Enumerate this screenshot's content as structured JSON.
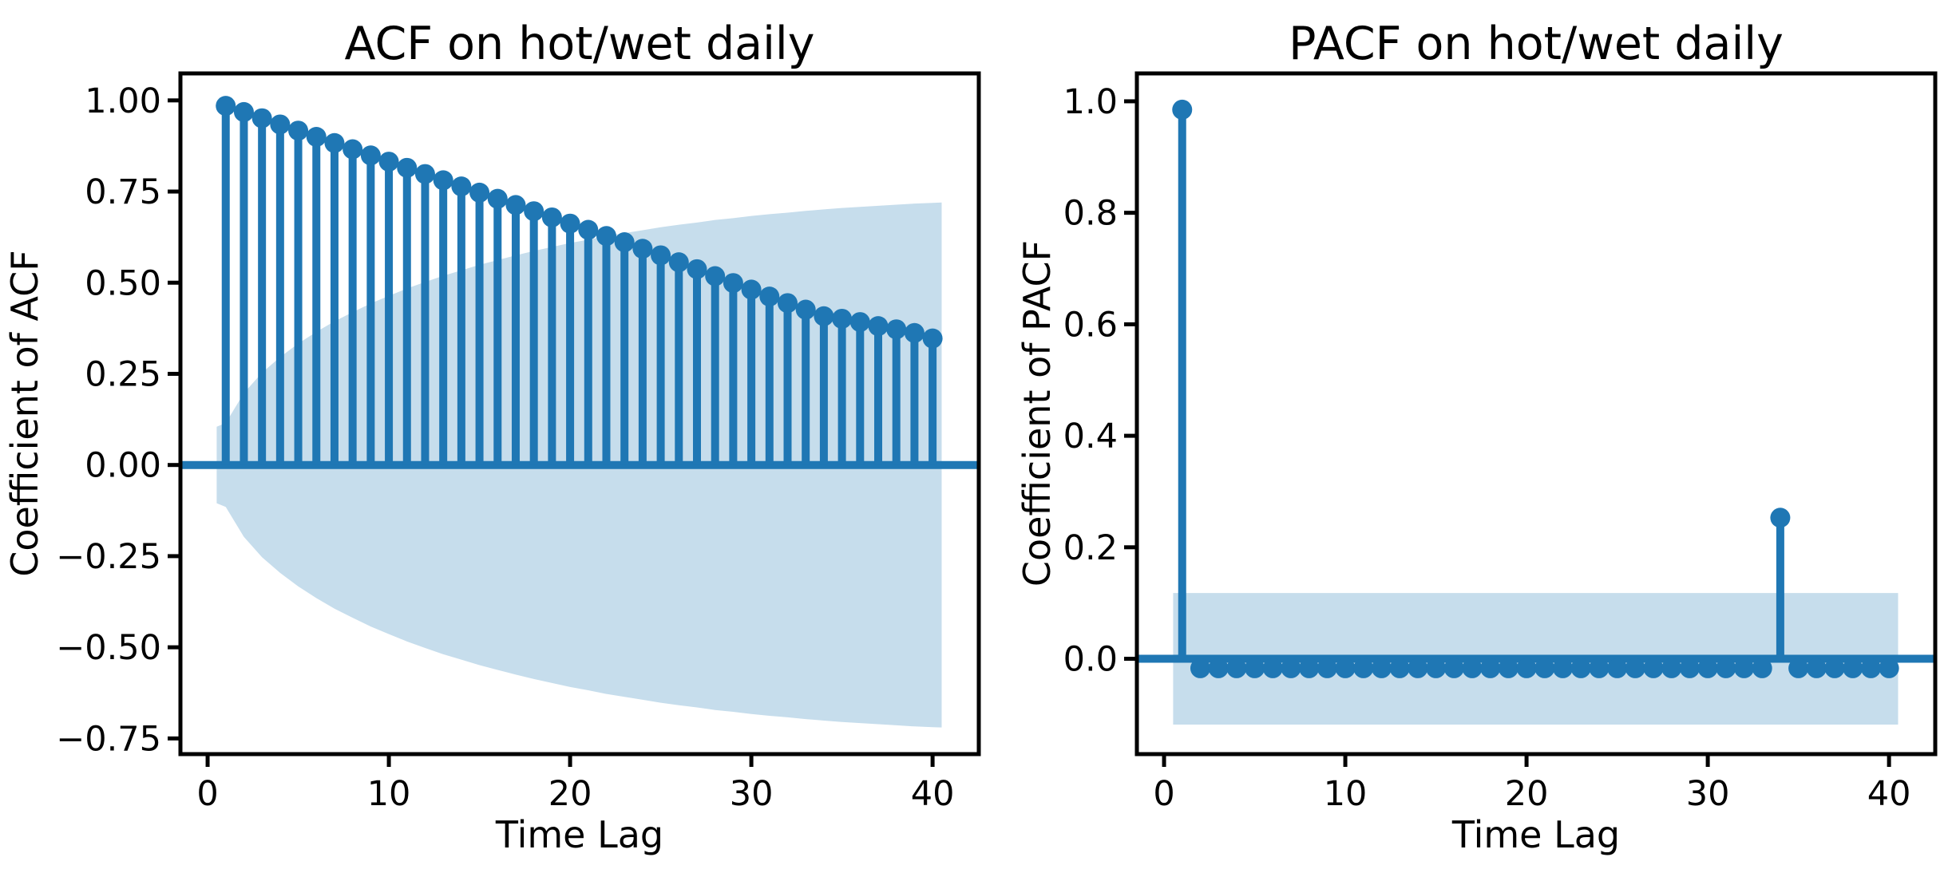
{
  "figure": {
    "background": "#ffffff"
  },
  "colors": {
    "stem": "#1f77b4",
    "marker": "#1f77b4",
    "band": "#c6ddec",
    "spine": "#000000",
    "text": "#000000"
  },
  "chart_data": [
    {
      "type": "stem",
      "name": "acf",
      "title": "ACF on hot/wet daily",
      "xlabel": "Time Lag",
      "ylabel": "Coefficient of ACF",
      "xlim": [
        -1.5,
        42.55
      ],
      "ylim": [
        -0.793,
        1.074
      ],
      "xticks": [
        0,
        10,
        20,
        30,
        40
      ],
      "xtick_labels": [
        "0",
        "10",
        "20",
        "30",
        "40"
      ],
      "yticks": [
        1.0,
        0.75,
        0.5,
        0.25,
        0.0,
        -0.25,
        -0.5,
        -0.75
      ],
      "ytick_labels": [
        "1.00",
        "0.75",
        "0.50",
        "0.25",
        "0.00",
        "−0.25",
        "−0.50",
        "−0.75"
      ],
      "grid": false,
      "lag_start": 1,
      "values": [
        0.985,
        0.968,
        0.951,
        0.934,
        0.917,
        0.9,
        0.883,
        0.866,
        0.849,
        0.832,
        0.815,
        0.798,
        0.781,
        0.764,
        0.747,
        0.73,
        0.713,
        0.696,
        0.679,
        0.662,
        0.645,
        0.628,
        0.611,
        0.593,
        0.575,
        0.556,
        0.537,
        0.518,
        0.499,
        0.481,
        0.462,
        0.444,
        0.426,
        0.408,
        0.401,
        0.392,
        0.381,
        0.372,
        0.362,
        0.347
      ],
      "zero_line": 0,
      "ci_band": {
        "x": [
          0.5,
          1,
          2,
          3,
          4,
          5,
          6,
          7,
          8,
          9,
          10,
          11,
          12,
          13,
          14,
          15,
          16,
          17,
          18,
          19,
          20,
          21,
          22,
          23,
          24,
          25,
          26,
          27,
          28,
          29,
          30,
          31,
          32,
          33,
          34,
          35,
          36,
          37,
          38,
          39,
          40,
          40.5
        ],
        "upper": [
          0.105,
          0.115,
          0.197,
          0.253,
          0.296,
          0.333,
          0.365,
          0.394,
          0.419,
          0.443,
          0.464,
          0.484,
          0.502,
          0.519,
          0.534,
          0.549,
          0.562,
          0.575,
          0.587,
          0.598,
          0.609,
          0.618,
          0.628,
          0.636,
          0.644,
          0.652,
          0.659,
          0.665,
          0.672,
          0.677,
          0.683,
          0.688,
          0.692,
          0.697,
          0.701,
          0.705,
          0.708,
          0.711,
          0.714,
          0.717,
          0.719,
          0.72
        ],
        "symmetric": true
      }
    },
    {
      "type": "stem",
      "name": "pacf",
      "title": "PACF on hot/wet daily",
      "xlabel": "Time Lag",
      "ylabel": "Coefficient of PACF",
      "xlim": [
        -1.5,
        42.55
      ],
      "ylim": [
        -0.171,
        1.05
      ],
      "xticks": [
        0,
        10,
        20,
        30,
        40
      ],
      "xtick_labels": [
        "0",
        "10",
        "20",
        "30",
        "40"
      ],
      "yticks": [
        1.0,
        0.8,
        0.6,
        0.4,
        0.2,
        0.0
      ],
      "ytick_labels": [
        "1.0",
        "0.8",
        "0.6",
        "0.4",
        "0.2",
        "0.0"
      ],
      "grid": false,
      "lag_start": 1,
      "values": [
        0.985,
        -0.017,
        -0.017,
        -0.017,
        -0.017,
        -0.017,
        -0.017,
        -0.017,
        -0.017,
        -0.017,
        -0.017,
        -0.017,
        -0.017,
        -0.017,
        -0.017,
        -0.017,
        -0.017,
        -0.017,
        -0.017,
        -0.017,
        -0.017,
        -0.017,
        -0.017,
        -0.017,
        -0.017,
        -0.017,
        -0.017,
        -0.017,
        -0.017,
        -0.017,
        -0.017,
        -0.017,
        -0.017,
        0.253,
        -0.017,
        -0.017,
        -0.017,
        -0.017,
        -0.017,
        -0.017
      ],
      "zero_line": 0,
      "ci_band": {
        "x": [
          0.5,
          40.5
        ],
        "upper": [
          0.118,
          0.118
        ],
        "symmetric": true
      }
    }
  ]
}
